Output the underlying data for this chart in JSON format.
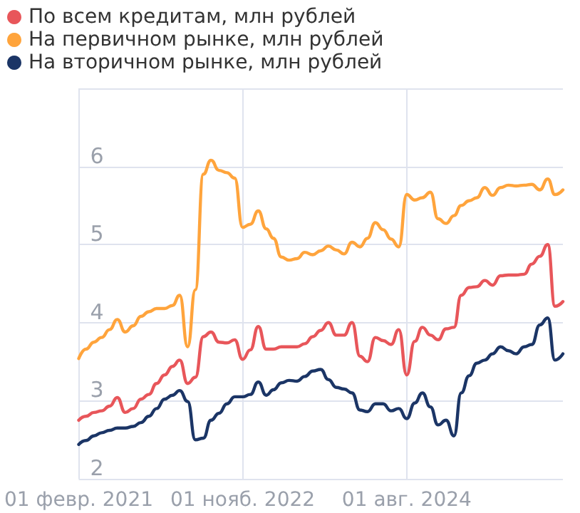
{
  "chart_data": {
    "type": "line",
    "x": [
      "2021-02",
      "2021-03",
      "2021-04",
      "2021-05",
      "2021-06",
      "2021-07",
      "2021-08",
      "2021-09",
      "2021-10",
      "2021-11",
      "2021-12",
      "2022-01",
      "2022-02",
      "2022-03",
      "2022-04",
      "2022-05",
      "2022-06",
      "2022-07",
      "2022-08",
      "2022-09",
      "2022-10",
      "2022-11",
      "2022-12",
      "2023-01",
      "2023-02",
      "2023-03",
      "2023-04",
      "2023-05",
      "2023-06",
      "2023-07",
      "2023-08",
      "2023-09",
      "2023-10",
      "2023-11",
      "2023-12",
      "2024-01",
      "2024-02",
      "2024-03",
      "2024-04",
      "2024-05",
      "2024-06",
      "2024-07",
      "2024-08",
      "2024-09",
      "2024-10",
      "2024-11",
      "2024-12",
      "2025-01",
      "2025-02",
      "2025-03",
      "2025-04",
      "2025-05",
      "2025-06",
      "2025-07",
      "2025-08",
      "2025-09",
      "2025-10",
      "2025-11",
      "2025-12",
      "2026-01",
      "2026-02",
      "2026-03",
      "2026-04"
    ],
    "series": [
      {
        "name": "По всем кредитам, млн рублей",
        "color": "#e8565a",
        "values": [
          2.75,
          2.8,
          2.85,
          2.87,
          2.93,
          3.04,
          2.85,
          2.9,
          3.02,
          3.08,
          3.22,
          3.33,
          3.44,
          3.52,
          3.22,
          3.3,
          3.82,
          3.88,
          3.75,
          3.74,
          3.78,
          3.53,
          3.65,
          3.95,
          3.66,
          3.66,
          3.69,
          3.69,
          3.69,
          3.73,
          3.82,
          3.9,
          4.0,
          3.84,
          3.84,
          4.0,
          3.57,
          3.5,
          3.81,
          3.77,
          3.72,
          3.91,
          3.33,
          3.76,
          3.94,
          3.84,
          3.78,
          3.92,
          3.94,
          4.35,
          4.45,
          4.46,
          4.54,
          4.48,
          4.6,
          4.61,
          4.61,
          4.62,
          4.75,
          4.85,
          5.0,
          4.21,
          4.27
        ]
      },
      {
        "name": "На первичном рынке, млн рублей",
        "color": "#ffa43c",
        "values": [
          3.54,
          3.66,
          3.75,
          3.81,
          3.91,
          4.04,
          3.88,
          3.96,
          4.08,
          4.14,
          4.18,
          4.18,
          4.22,
          4.35,
          3.69,
          4.42,
          5.9,
          6.08,
          5.95,
          5.92,
          5.85,
          5.22,
          5.26,
          5.43,
          5.2,
          5.08,
          4.84,
          4.8,
          4.82,
          4.9,
          4.87,
          4.92,
          4.98,
          4.93,
          4.88,
          5.03,
          4.97,
          5.08,
          5.28,
          5.19,
          5.07,
          4.97,
          5.64,
          5.57,
          5.6,
          5.67,
          5.33,
          5.27,
          5.37,
          5.5,
          5.56,
          5.6,
          5.73,
          5.63,
          5.73,
          5.76,
          5.75,
          5.76,
          5.77,
          5.7,
          5.84,
          5.64,
          5.7
        ]
      },
      {
        "name": "На вторичном рынке, млн рублей",
        "color": "#1b3566",
        "values": [
          2.44,
          2.49,
          2.55,
          2.59,
          2.62,
          2.65,
          2.65,
          2.67,
          2.72,
          2.8,
          2.9,
          3.02,
          3.07,
          3.13,
          2.99,
          2.5,
          2.52,
          2.75,
          2.84,
          2.96,
          3.05,
          3.05,
          3.08,
          3.24,
          3.07,
          3.14,
          3.23,
          3.26,
          3.25,
          3.31,
          3.38,
          3.4,
          3.27,
          3.17,
          3.15,
          3.1,
          2.88,
          2.86,
          2.96,
          2.96,
          2.87,
          2.9,
          2.77,
          2.97,
          3.1,
          2.92,
          2.69,
          2.75,
          2.55,
          3.1,
          3.32,
          3.48,
          3.52,
          3.6,
          3.69,
          3.64,
          3.6,
          3.69,
          3.72,
          3.97,
          4.06,
          3.52,
          3.6
        ]
      }
    ],
    "xlim": [
      "2021-02",
      "2026-04"
    ],
    "xticks": [
      {
        "value": "2021-02-01",
        "label": "01 февр. 2021"
      },
      {
        "value": "2022-11-01",
        "label": "01 нояб. 2022"
      },
      {
        "value": "2024-08-01",
        "label": "01 авг. 2024"
      }
    ],
    "ylim": [
      2,
      7
    ],
    "yticks": [
      2,
      3,
      4,
      5,
      6,
      {
        "value": 7,
        "label": null
      }
    ],
    "grid": true,
    "legend": "top left",
    "marker": "none",
    "line_style": "solid"
  }
}
